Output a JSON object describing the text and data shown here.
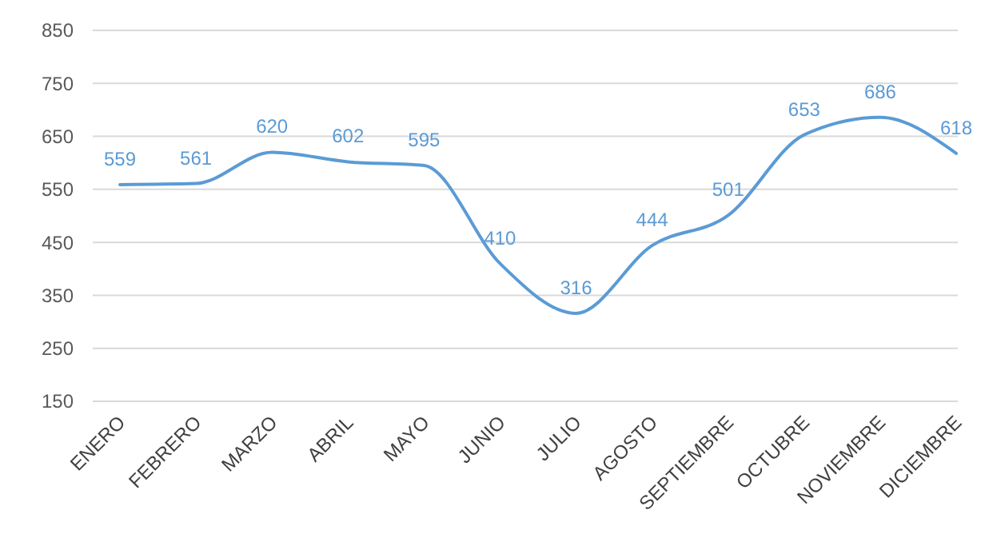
{
  "chart_data": {
    "type": "line",
    "categories": [
      "ENERO",
      "FEBRERO",
      "MARZO",
      "ABRIL",
      "MAYO",
      "JUNIO",
      "JULIO",
      "AGOSTO",
      "SEPTIEMBRE",
      "OCTUBRE",
      "NOVIEMBRE",
      "DICIEMBRE"
    ],
    "series": [
      {
        "color": "#5b9bd5",
        "values": [
          559,
          561,
          620,
          602,
          595,
          410,
          316,
          444,
          501,
          653,
          686,
          618
        ]
      }
    ],
    "ylim": [
      150,
      850
    ],
    "yticks": [
      150,
      250,
      350,
      450,
      550,
      650,
      750,
      850
    ],
    "grid": "y",
    "data_labels": true,
    "marker": "none",
    "line_style": "solid"
  }
}
